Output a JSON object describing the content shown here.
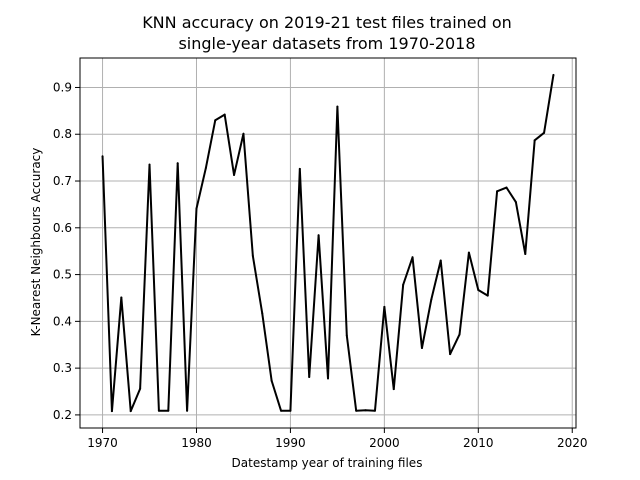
{
  "chart_data": {
    "type": "line",
    "title": [
      "KNN accuracy on 2019-21 test files trained on",
      "single-year datasets from 1970-2018"
    ],
    "xlabel": "Datestamp year of training files",
    "ylabel": "K-Nearest Neighbours Accuracy",
    "xlim": [
      1967.6,
      2020.4
    ],
    "ylim": [
      0.172,
      0.963
    ],
    "xticks": [
      1970,
      1980,
      1990,
      2000,
      2010,
      2020
    ],
    "yticks": [
      0.2,
      0.3,
      0.4,
      0.5,
      0.6,
      0.7,
      0.8,
      0.9
    ],
    "ytick_labels": [
      "0.2",
      "0.3",
      "0.4",
      "0.5",
      "0.6",
      "0.7",
      "0.8",
      "0.9"
    ],
    "grid": true,
    "line_color": "#000000",
    "series": [
      {
        "x": [
          1970,
          1971,
          1972,
          1973,
          1974,
          1975,
          1976,
          1977,
          1978,
          1979,
          1980,
          1981,
          1982,
          1983,
          1984,
          1985,
          1986,
          1987,
          1988,
          1989,
          1990,
          1991,
          1992,
          1993,
          1994,
          1995,
          1996,
          1997,
          1998,
          1999,
          2000,
          2001,
          2002,
          2003,
          2004,
          2005,
          2006,
          2007,
          2008,
          2009,
          2010,
          2011,
          2012,
          2013,
          2014,
          2015,
          2016,
          2017,
          2018
        ],
        "y": [
          0.753,
          0.208,
          0.451,
          0.208,
          0.256,
          0.735,
          0.209,
          0.209,
          0.738,
          0.209,
          0.641,
          0.728,
          0.83,
          0.842,
          0.713,
          0.801,
          0.54,
          0.417,
          0.273,
          0.209,
          0.209,
          0.726,
          0.281,
          0.584,
          0.278,
          0.859,
          0.37,
          0.209,
          0.21,
          0.209,
          0.431,
          0.255,
          0.478,
          0.537,
          0.343,
          0.447,
          0.53,
          0.33,
          0.372,
          0.547,
          0.467,
          0.455,
          0.678,
          0.686,
          0.655,
          0.544,
          0.787,
          0.803,
          0.927
        ]
      }
    ]
  }
}
